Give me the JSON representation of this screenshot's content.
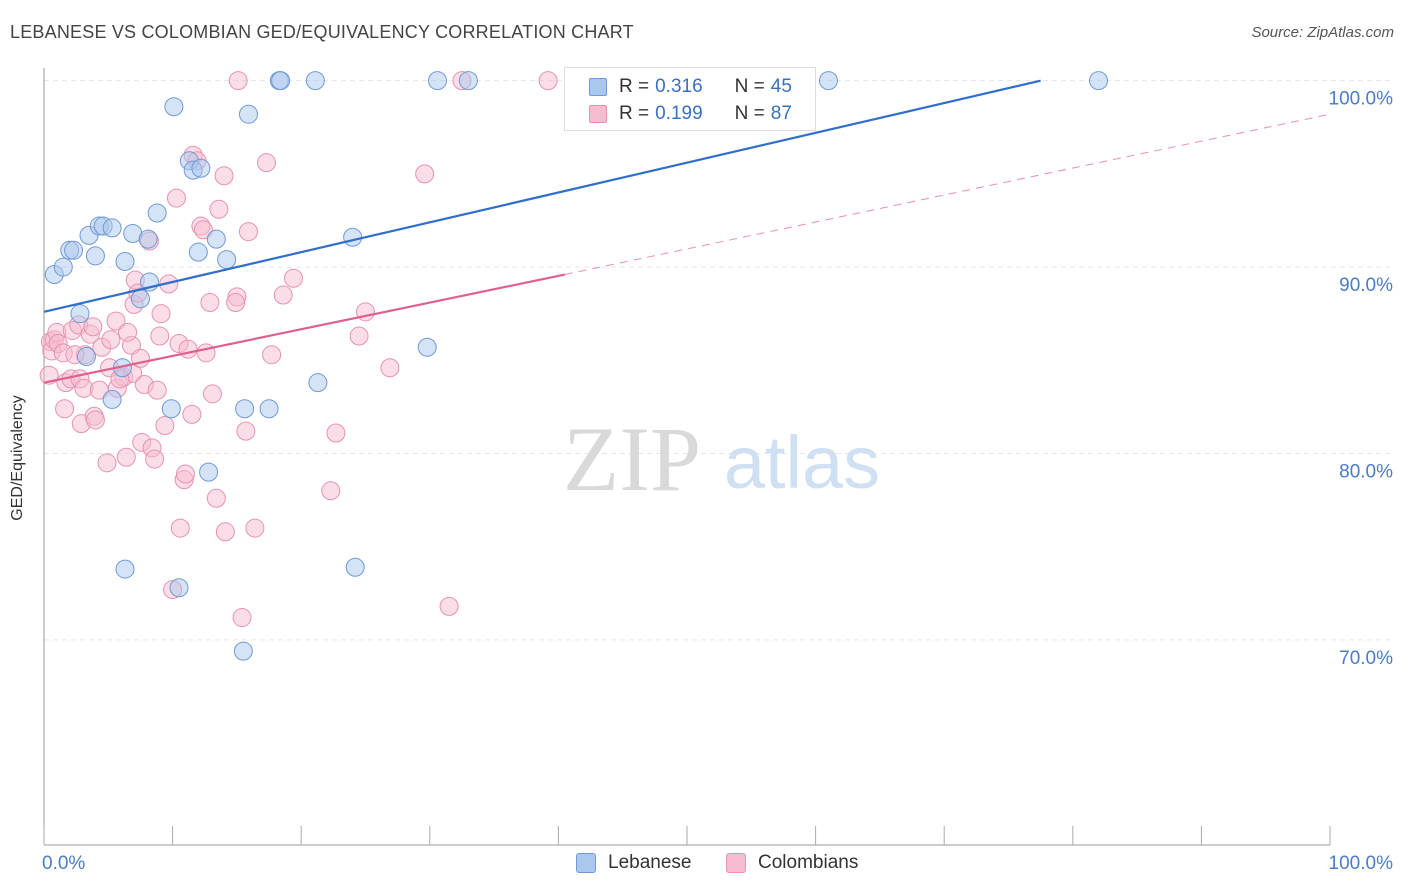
{
  "title": "LEBANESE VS COLOMBIAN GED/EQUIVALENCY CORRELATION CHART",
  "source": "Source: ZipAtlas.com",
  "watermark": {
    "zip": "ZIP",
    "atlas": "atlas"
  },
  "legend": {
    "rows": [
      {
        "r_label": "R = ",
        "r_value": "0.316",
        "n_label": "N = ",
        "n_value": "45"
      },
      {
        "r_label": "R = ",
        "r_value": "0.199",
        "n_label": "N = ",
        "n_value": "87"
      }
    ]
  },
  "bottom_legend": {
    "lebanese": "Lebanese",
    "colombians": "Colombians"
  },
  "colors": {
    "blue_fill": "#aac8ee",
    "blue_stroke": "#6f9ad6",
    "blue_line": "#2f6fcc",
    "pink_fill": "#f6bcd0",
    "pink_stroke": "#e892b0",
    "pink_line": "#e0608c",
    "axis_text": "#4a7cc8",
    "grid": "#e6e6e6"
  },
  "chart_data": {
    "type": "scatter",
    "title": "LEBANESE VS COLOMBIAN GED/EQUIVALENCY CORRELATION CHART",
    "xlabel": "",
    "ylabel": "GED/Equivalency",
    "xlim": [
      0,
      100
    ],
    "ylim": [
      59.0,
      101.0
    ],
    "x_tick_labels": [
      "0.0%",
      "100.0%"
    ],
    "y_ticks": [
      70,
      80,
      90,
      100
    ],
    "y_tick_labels": [
      "70.0%",
      "80.0%",
      "90.0%",
      "100.0%"
    ],
    "series": [
      {
        "name": "Lebanese",
        "R": 0.316,
        "N": 45,
        "trend": {
          "x": [
            0,
            77.5
          ],
          "y": [
            87.6,
            100.0
          ]
        },
        "points": [
          [
            0.8,
            89.6
          ],
          [
            1.5,
            90.0
          ],
          [
            2.0,
            90.9
          ],
          [
            2.3,
            90.9
          ],
          [
            2.8,
            87.5
          ],
          [
            3.3,
            85.2
          ],
          [
            3.5,
            91.7
          ],
          [
            4.0,
            90.6
          ],
          [
            4.3,
            92.2
          ],
          [
            4.6,
            92.2
          ],
          [
            5.3,
            92.1
          ],
          [
            5.3,
            82.9
          ],
          [
            6.1,
            84.6
          ],
          [
            6.3,
            90.3
          ],
          [
            6.9,
            91.8
          ],
          [
            7.5,
            88.3
          ],
          [
            8.1,
            91.5
          ],
          [
            8.2,
            89.2
          ],
          [
            8.8,
            92.9
          ],
          [
            9.9,
            82.4
          ],
          [
            10.1,
            98.6
          ],
          [
            11.3,
            95.7
          ],
          [
            11.6,
            95.2
          ],
          [
            12.2,
            95.3
          ],
          [
            12.8,
            79.0
          ],
          [
            13.4,
            91.5
          ],
          [
            14.2,
            90.4
          ],
          [
            15.6,
            82.4
          ],
          [
            15.9,
            98.2
          ],
          [
            17.5,
            82.4
          ],
          [
            18.3,
            100.0
          ],
          [
            18.4,
            100.0
          ],
          [
            21.1,
            100.0
          ],
          [
            21.3,
            83.8
          ],
          [
            24.0,
            91.6
          ],
          [
            24.2,
            73.9
          ],
          [
            29.8,
            85.7
          ],
          [
            30.6,
            100.0
          ],
          [
            33.0,
            100.0
          ],
          [
            61.0,
            100.0
          ],
          [
            82.0,
            100.0
          ],
          [
            6.3,
            73.8
          ],
          [
            10.5,
            72.8
          ],
          [
            15.5,
            69.4
          ],
          [
            12.0,
            90.8
          ]
        ]
      },
      {
        "name": "Colombians",
        "R": 0.199,
        "N": 87,
        "trend": {
          "x": [
            0,
            40.5
          ],
          "y": [
            83.8,
            89.6
          ]
        },
        "trend_extension": {
          "x": [
            40.5,
            100
          ],
          "y": [
            89.6,
            98.2
          ]
        },
        "points": [
          [
            0.5,
            86.0
          ],
          [
            0.6,
            85.5
          ],
          [
            0.8,
            86.1
          ],
          [
            1.0,
            86.5
          ],
          [
            1.1,
            85.9
          ],
          [
            1.5,
            85.4
          ],
          [
            1.6,
            82.4
          ],
          [
            1.7,
            83.8
          ],
          [
            2.1,
            84.0
          ],
          [
            2.2,
            86.6
          ],
          [
            2.7,
            86.9
          ],
          [
            2.8,
            84.0
          ],
          [
            2.9,
            81.6
          ],
          [
            3.1,
            83.5
          ],
          [
            3.2,
            85.3
          ],
          [
            3.6,
            86.4
          ],
          [
            3.9,
            82.0
          ],
          [
            4.0,
            81.8
          ],
          [
            4.3,
            83.4
          ],
          [
            4.5,
            85.7
          ],
          [
            4.9,
            79.5
          ],
          [
            5.1,
            84.6
          ],
          [
            5.2,
            86.1
          ],
          [
            5.6,
            87.1
          ],
          [
            5.7,
            83.5
          ],
          [
            6.2,
            84.1
          ],
          [
            6.4,
            79.8
          ],
          [
            6.8,
            85.8
          ],
          [
            6.9,
            84.3
          ],
          [
            7.0,
            88.0
          ],
          [
            7.1,
            89.3
          ],
          [
            7.5,
            85.1
          ],
          [
            7.6,
            80.6
          ],
          [
            7.8,
            83.7
          ],
          [
            8.2,
            91.4
          ],
          [
            8.4,
            80.3
          ],
          [
            8.6,
            79.7
          ],
          [
            9.1,
            87.5
          ],
          [
            9.4,
            81.5
          ],
          [
            9.7,
            89.1
          ],
          [
            10.0,
            72.7
          ],
          [
            10.3,
            93.7
          ],
          [
            10.6,
            76.0
          ],
          [
            10.9,
            78.6
          ],
          [
            11.0,
            78.9
          ],
          [
            11.5,
            82.1
          ],
          [
            11.6,
            96.0
          ],
          [
            11.9,
            95.7
          ],
          [
            12.2,
            92.2
          ],
          [
            12.6,
            85.4
          ],
          [
            12.9,
            88.1
          ],
          [
            13.1,
            83.2
          ],
          [
            13.4,
            77.6
          ],
          [
            13.6,
            93.1
          ],
          [
            14.0,
            94.9
          ],
          [
            14.1,
            75.8
          ],
          [
            15.0,
            88.4
          ],
          [
            15.4,
            71.2
          ],
          [
            15.7,
            81.2
          ],
          [
            15.9,
            91.9
          ],
          [
            16.4,
            76.0
          ],
          [
            17.3,
            95.6
          ],
          [
            17.7,
            85.3
          ],
          [
            18.6,
            88.5
          ],
          [
            19.4,
            89.4
          ],
          [
            22.3,
            78.0
          ],
          [
            22.7,
            81.1
          ],
          [
            24.5,
            86.3
          ],
          [
            25.0,
            87.6
          ],
          [
            26.9,
            84.6
          ],
          [
            29.6,
            95.0
          ],
          [
            31.5,
            71.8
          ],
          [
            32.5,
            100.0
          ],
          [
            15.1,
            100.0
          ],
          [
            39.2,
            100.0
          ],
          [
            8.8,
            83.4
          ],
          [
            6.5,
            86.5
          ],
          [
            7.3,
            88.6
          ],
          [
            9.0,
            86.3
          ],
          [
            10.5,
            85.9
          ],
          [
            12.4,
            92.0
          ],
          [
            14.9,
            88.1
          ],
          [
            11.2,
            85.6
          ],
          [
            3.8,
            86.8
          ],
          [
            2.4,
            85.3
          ],
          [
            0.4,
            84.2
          ],
          [
            5.9,
            84.0
          ]
        ]
      }
    ]
  }
}
